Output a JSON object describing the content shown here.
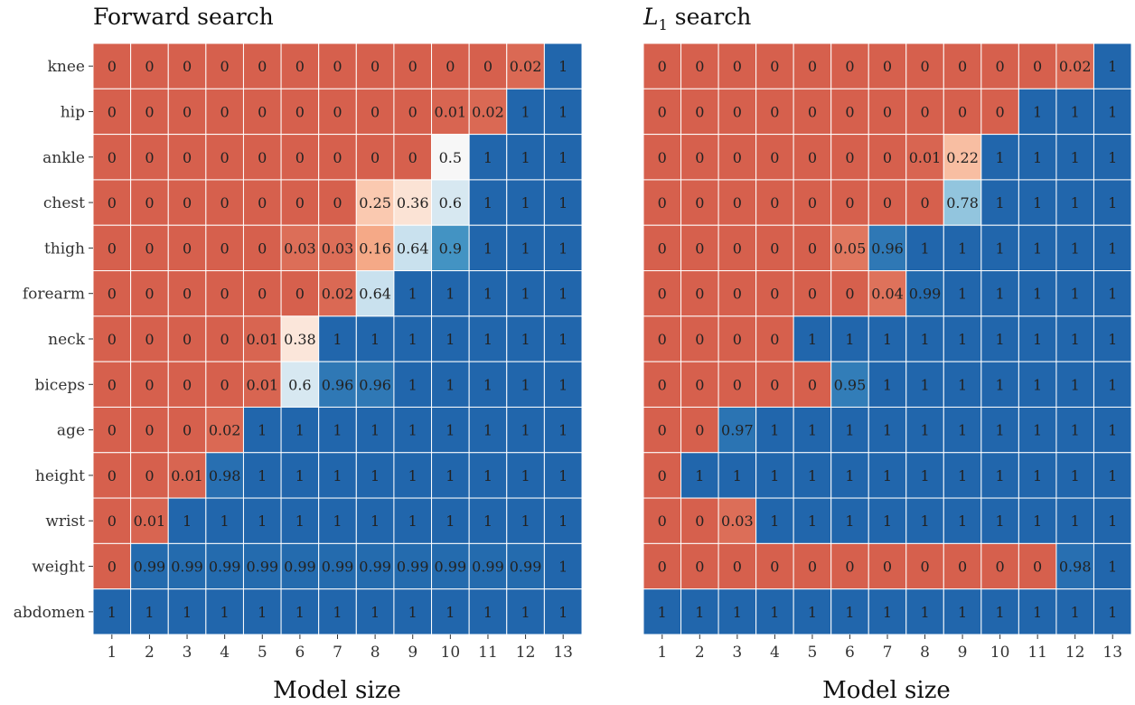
{
  "chart_data": [
    {
      "type": "heatmap",
      "title": "Forward search",
      "xlabel": "Model size",
      "ylabel": "",
      "rows": [
        "knee",
        "hip",
        "ankle",
        "chest",
        "thigh",
        "forearm",
        "neck",
        "biceps",
        "age",
        "height",
        "wrist",
        "weight",
        "abdomen"
      ],
      "columns": [
        "1",
        "2",
        "3",
        "4",
        "5",
        "6",
        "7",
        "8",
        "9",
        "10",
        "11",
        "12",
        "13"
      ],
      "values": [
        [
          "0",
          "0",
          "0",
          "0",
          "0",
          "0",
          "0",
          "0",
          "0",
          "0",
          "0",
          "0.02",
          "1"
        ],
        [
          "0",
          "0",
          "0",
          "0",
          "0",
          "0",
          "0",
          "0",
          "0",
          "0.01",
          "0.02",
          "1",
          "1"
        ],
        [
          "0",
          "0",
          "0",
          "0",
          "0",
          "0",
          "0",
          "0",
          "0",
          "0.5",
          "1",
          "1",
          "1"
        ],
        [
          "0",
          "0",
          "0",
          "0",
          "0",
          "0",
          "0",
          "0.25",
          "0.36",
          "0.6",
          "1",
          "1",
          "1"
        ],
        [
          "0",
          "0",
          "0",
          "0",
          "0",
          "0.03",
          "0.03",
          "0.16",
          "0.64",
          "0.9",
          "1",
          "1",
          "1"
        ],
        [
          "0",
          "0",
          "0",
          "0",
          "0",
          "0",
          "0.02",
          "0.64",
          "1",
          "1",
          "1",
          "1",
          "1"
        ],
        [
          "0",
          "0",
          "0",
          "0",
          "0.01",
          "0.38",
          "1",
          "1",
          "1",
          "1",
          "1",
          "1",
          "1"
        ],
        [
          "0",
          "0",
          "0",
          "0",
          "0.01",
          "0.6",
          "0.96",
          "0.96",
          "1",
          "1",
          "1",
          "1",
          "1"
        ],
        [
          "0",
          "0",
          "0",
          "0.02",
          "1",
          "1",
          "1",
          "1",
          "1",
          "1",
          "1",
          "1",
          "1"
        ],
        [
          "0",
          "0",
          "0.01",
          "0.98",
          "1",
          "1",
          "1",
          "1",
          "1",
          "1",
          "1",
          "1",
          "1"
        ],
        [
          "0",
          "0.01",
          "1",
          "1",
          "1",
          "1",
          "1",
          "1",
          "1",
          "1",
          "1",
          "1",
          "1"
        ],
        [
          "0",
          "0.99",
          "0.99",
          "0.99",
          "0.99",
          "0.99",
          "0.99",
          "0.99",
          "0.99",
          "0.99",
          "0.99",
          "0.99",
          "1"
        ],
        [
          "1",
          "1",
          "1",
          "1",
          "1",
          "1",
          "1",
          "1",
          "1",
          "1",
          "1",
          "1",
          "1"
        ]
      ]
    },
    {
      "type": "heatmap",
      "title": "L",
      "title_subscript": "1",
      "title_suffix": "search",
      "xlabel": "Model size",
      "ylabel": "",
      "rows": [
        "knee",
        "hip",
        "ankle",
        "chest",
        "thigh",
        "forearm",
        "neck",
        "biceps",
        "age",
        "height",
        "wrist",
        "weight",
        "abdomen"
      ],
      "columns": [
        "1",
        "2",
        "3",
        "4",
        "5",
        "6",
        "7",
        "8",
        "9",
        "10",
        "11",
        "12",
        "13"
      ],
      "values": [
        [
          "0",
          "0",
          "0",
          "0",
          "0",
          "0",
          "0",
          "0",
          "0",
          "0",
          "0",
          "0.02",
          "1"
        ],
        [
          "0",
          "0",
          "0",
          "0",
          "0",
          "0",
          "0",
          "0",
          "0",
          "0",
          "1",
          "1",
          "1"
        ],
        [
          "0",
          "0",
          "0",
          "0",
          "0",
          "0",
          "0",
          "0.01",
          "0.22",
          "1",
          "1",
          "1",
          "1"
        ],
        [
          "0",
          "0",
          "0",
          "0",
          "0",
          "0",
          "0",
          "0",
          "0.78",
          "1",
          "1",
          "1",
          "1"
        ],
        [
          "0",
          "0",
          "0",
          "0",
          "0",
          "0.05",
          "0.96",
          "1",
          "1",
          "1",
          "1",
          "1",
          "1"
        ],
        [
          "0",
          "0",
          "0",
          "0",
          "0",
          "0",
          "0.04",
          "0.99",
          "1",
          "1",
          "1",
          "1",
          "1"
        ],
        [
          "0",
          "0",
          "0",
          "0",
          "1",
          "1",
          "1",
          "1",
          "1",
          "1",
          "1",
          "1",
          "1"
        ],
        [
          "0",
          "0",
          "0",
          "0",
          "0",
          "0.95",
          "1",
          "1",
          "1",
          "1",
          "1",
          "1",
          "1"
        ],
        [
          "0",
          "0",
          "0.97",
          "1",
          "1",
          "1",
          "1",
          "1",
          "1",
          "1",
          "1",
          "1",
          "1"
        ],
        [
          "0",
          "1",
          "1",
          "1",
          "1",
          "1",
          "1",
          "1",
          "1",
          "1",
          "1",
          "1",
          "1"
        ],
        [
          "0",
          "0",
          "0.03",
          "1",
          "1",
          "1",
          "1",
          "1",
          "1",
          "1",
          "1",
          "1",
          "1"
        ],
        [
          "0",
          "0",
          "0",
          "0",
          "0",
          "0",
          "0",
          "0",
          "0",
          "0",
          "0",
          "0.98",
          "1"
        ],
        [
          "1",
          "1",
          "1",
          "1",
          "1",
          "1",
          "1",
          "1",
          "1",
          "1",
          "1",
          "1",
          "1"
        ]
      ]
    }
  ],
  "colors": {
    "low": "#d6604d",
    "low_mid": "#f4a582",
    "low_light": "#fddbc7",
    "mid": "#f7f7f7",
    "high_light": "#d1e5f0",
    "high_mid": "#92c5de",
    "high_mid2": "#4393c3",
    "high": "#2166ac",
    "grid": "#ffffff"
  }
}
